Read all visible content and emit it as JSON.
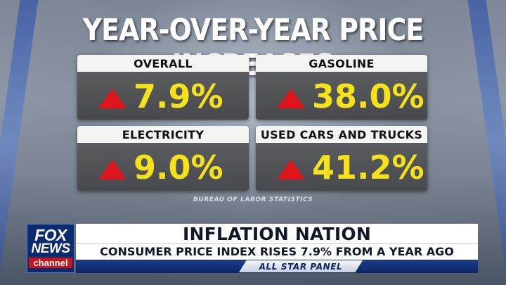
{
  "title": "YEAR-OVER-YEAR PRICE INCREASES",
  "cards": [
    {
      "label": "OVERALL",
      "value": "7.9%"
    },
    {
      "label": "GASOLINE",
      "value": "38.0%"
    },
    {
      "label": "ELECTRICITY",
      "value": "9.0%"
    },
    {
      "label": "USED CARS AND TRUCKS",
      "value": "41.2%"
    }
  ],
  "source": "BUREAU OF LABOR STATISTICS",
  "lower_third": {
    "headline": "INFLATION NATION",
    "subline": "CONSUMER PRICE INDEX RISES 7.9% FROM A YEAR AGO",
    "panel": "ALL STAR PANEL"
  },
  "logo": {
    "line1": "FOX",
    "line2": "NEWS",
    "line3": "channel"
  },
  "colors": {
    "accent_yellow": "#f6e21a",
    "arrow_red": "#e0141b",
    "fox_blue": "#0c2a6e"
  },
  "icons": {
    "increase": "up-triangle-icon"
  }
}
